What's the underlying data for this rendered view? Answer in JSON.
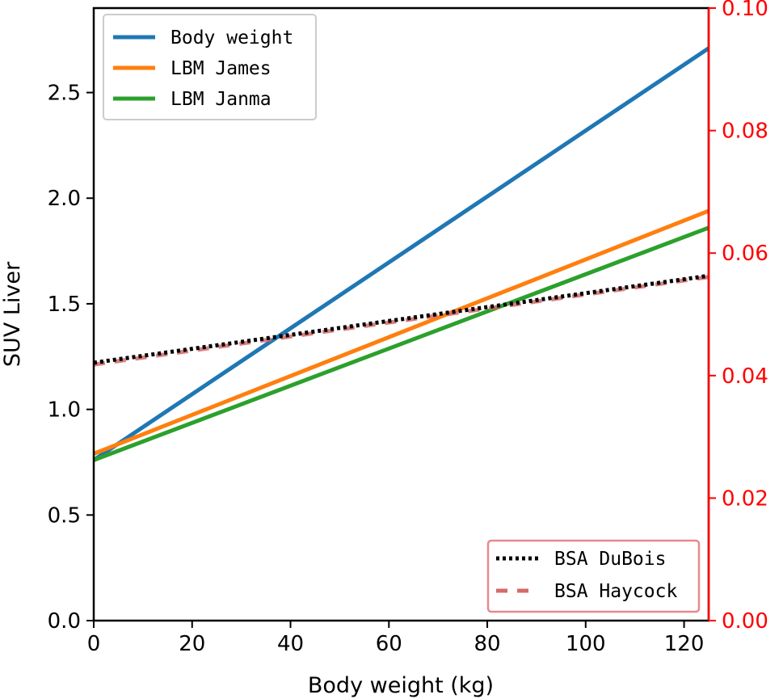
{
  "chart_data": {
    "type": "line",
    "title": "",
    "xlabel": "Body weight (kg)",
    "ylabel": "SUV Liver",
    "xlim": [
      0,
      125
    ],
    "ylim": [
      0,
      2.9
    ],
    "y2lim": [
      0,
      0.1
    ],
    "x_ticks": [
      0,
      20,
      40,
      60,
      80,
      100,
      120
    ],
    "x_tick_labels": [
      "0",
      "20",
      "40",
      "60",
      "80",
      "100",
      "120"
    ],
    "y_ticks": [
      0.0,
      0.5,
      1.0,
      1.5,
      2.0,
      2.5
    ],
    "y_tick_labels": [
      "0.0",
      "0.5",
      "1.0",
      "1.5",
      "2.0",
      "2.5"
    ],
    "y2_ticks": [
      0.0,
      0.02,
      0.04,
      0.06,
      0.08,
      0.1
    ],
    "y2_tick_labels": [
      "0.00",
      "0.02",
      "0.04",
      "0.06",
      "0.08",
      "0.10"
    ],
    "y2_color": "#ff0000",
    "grid": false,
    "series": [
      {
        "name": "Body weight",
        "axis": "left",
        "style": "solid",
        "color": "#1f77b4",
        "x": [
          0,
          125
        ],
        "y": [
          0.76,
          2.71
        ]
      },
      {
        "name": "LBM James",
        "axis": "left",
        "style": "solid",
        "color": "#ff7f0e",
        "x": [
          0,
          125
        ],
        "y": [
          0.79,
          1.94
        ]
      },
      {
        "name": "LBM Janma",
        "axis": "left",
        "style": "solid",
        "color": "#2ca02c",
        "x": [
          0,
          125
        ],
        "y": [
          0.76,
          1.86
        ]
      },
      {
        "name": "BSA DuBois",
        "axis": "right",
        "style": "dotted",
        "color": "#000000",
        "x": [
          0,
          125
        ],
        "y": [
          0.0421,
          0.0563
        ]
      },
      {
        "name": "BSA Haycock",
        "axis": "right",
        "style": "dashed",
        "color": "#d46a6a",
        "x": [
          0,
          125
        ],
        "y": [
          0.0418,
          0.0561
        ]
      }
    ],
    "legends": [
      {
        "placement": "upper-left",
        "entries": [
          "Body weight",
          "LBM James",
          "LBM Janma"
        ]
      },
      {
        "placement": "lower-right",
        "entries": [
          "BSA DuBois",
          "BSA Haycock"
        ]
      }
    ]
  }
}
